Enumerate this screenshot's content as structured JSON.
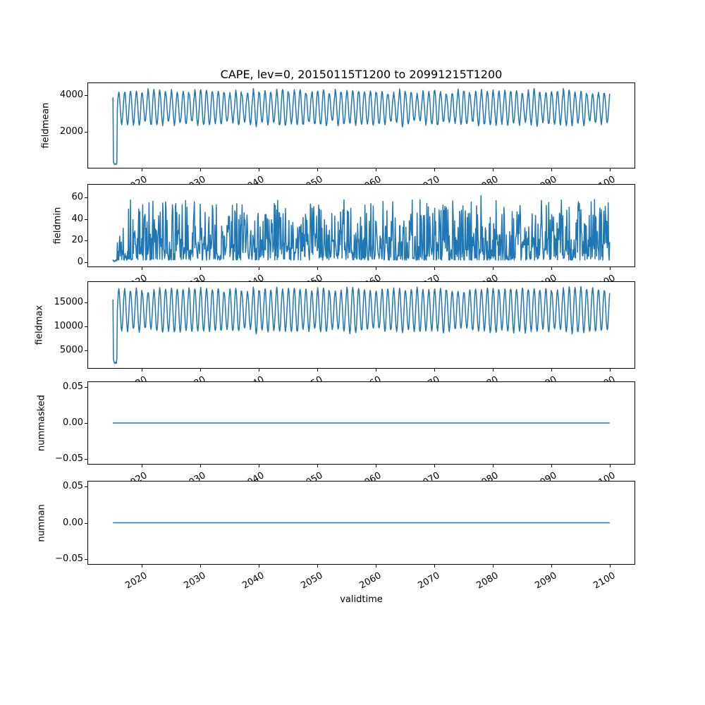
{
  "figure": {
    "title": "CAPE, lev=0, 20150115T1200 to 20991215T1200",
    "xlabel": "validtime",
    "background": "#ffffff",
    "line_color": "#1f77b4",
    "axis_color": "#000000"
  },
  "x_axis": {
    "lim": [
      2010.796,
      2104.204
    ],
    "ticks": [
      2020,
      2030,
      2040,
      2050,
      2060,
      2070,
      2080,
      2090,
      2100
    ],
    "tick_labels": [
      "2020",
      "2030",
      "2040",
      "2050",
      "2060",
      "2070",
      "2080",
      "2090",
      "2100"
    ],
    "tick_label_rotation_deg": 30
  },
  "subplots": [
    {
      "ylabel": "fieldmean",
      "ylim": [
        70,
        4650
      ],
      "yticks": [
        2000,
        4000
      ],
      "ytick_labels": [
        "2000",
        "4000"
      ]
    },
    {
      "ylabel": "fieldmin",
      "ylim": [
        -3.9,
        71.6
      ],
      "yticks": [
        0,
        20,
        40,
        60
      ],
      "ytick_labels": [
        "0",
        "20",
        "40",
        "60"
      ]
    },
    {
      "ylabel": "fieldmax",
      "ylim": [
        1320,
        19260
      ],
      "yticks": [
        5000,
        10000,
        15000
      ],
      "ytick_labels": [
        "5000",
        "10000",
        "15000"
      ]
    },
    {
      "ylabel": "nummasked",
      "ylim": [
        -0.0569,
        0.0569
      ],
      "yticks": [
        -0.05,
        0,
        0.05
      ],
      "ytick_labels": [
        "−0.05",
        "0.00",
        "0.05"
      ]
    },
    {
      "ylabel": "numnan",
      "ylim": [
        -0.0569,
        0.0569
      ],
      "yticks": [
        -0.05,
        0,
        0.05
      ],
      "ytick_labels": [
        "−0.05",
        "0.00",
        "0.05"
      ]
    }
  ],
  "chart_data": [
    {
      "type": "line",
      "name": "fieldmean",
      "color": "#1f77b4",
      "x_start_year": 2015.0417,
      "x_step_years": 0.083333,
      "n_points": 1020,
      "x_range": [
        2015.04,
        2099.96
      ],
      "pattern": "annual seasonal oscillation after a low spin-up dip in 2015",
      "observed_range": [
        250,
        4400
      ],
      "typical_peaks": [
        3800,
        4400
      ],
      "typical_troughs": [
        2250,
        2700
      ],
      "spinup_values": [
        3880,
        380,
        300,
        260,
        250,
        290,
        270,
        255,
        340
      ],
      "generator": {
        "kind": "seasonal",
        "center": 3320,
        "amplitude": 860,
        "amp_jitter": 120,
        "noise": 80,
        "seed": 7
      }
    },
    {
      "type": "line",
      "name": "fieldmin",
      "color": "#1f77b4",
      "x_start_year": 2015.0417,
      "x_step_years": 0.083333,
      "n_points": 1020,
      "x_range": [
        2015.04,
        2099.96
      ],
      "pattern": "irregular noisy spikes, near zero during 2015 spin-up",
      "observed_range": [
        0.5,
        68
      ],
      "typical_band": [
        8,
        35
      ],
      "spinup_values": [
        2.5,
        1.0,
        0.6,
        1.3,
        0.8,
        1.6,
        2.2,
        1.1,
        1.9
      ],
      "generator": {
        "kind": "spiky",
        "base": 2,
        "scale": 56,
        "power": 2.2,
        "spike_chance": 0.02,
        "spike_add": 8,
        "seed": 13
      }
    },
    {
      "type": "line",
      "name": "fieldmax",
      "color": "#1f77b4",
      "x_start_year": 2015.0417,
      "x_step_years": 0.083333,
      "n_points": 1020,
      "x_range": [
        2015.04,
        2099.96
      ],
      "pattern": "annual seasonal oscillation after a low spin-up dip in 2015",
      "observed_range": [
        2250,
        18400
      ],
      "typical_peaks": [
        16800,
        18400
      ],
      "typical_troughs": [
        8400,
        9800
      ],
      "spinup_values": [
        15600,
        3100,
        2700,
        2450,
        2250,
        2500,
        2400,
        2300,
        3300
      ],
      "generator": {
        "kind": "seasonal",
        "center": 13400,
        "amplitude": 4300,
        "amp_jitter": 450,
        "noise": 250,
        "seed": 21
      }
    },
    {
      "type": "line",
      "name": "nummasked",
      "color": "#1f77b4",
      "x_start_year": 2015.0417,
      "x_step_years": 0.083333,
      "n_points": 1020,
      "x_range": [
        2015.04,
        2099.96
      ],
      "pattern": "constant zero",
      "observed_range": [
        0,
        0
      ],
      "generator": {
        "kind": "constant",
        "value": 0
      }
    },
    {
      "type": "line",
      "name": "numnan",
      "color": "#1f77b4",
      "x_start_year": 2015.0417,
      "x_step_years": 0.083333,
      "n_points": 1020,
      "x_range": [
        2015.04,
        2099.96
      ],
      "pattern": "constant zero",
      "observed_range": [
        0,
        0
      ],
      "generator": {
        "kind": "constant",
        "value": 0
      }
    }
  ]
}
